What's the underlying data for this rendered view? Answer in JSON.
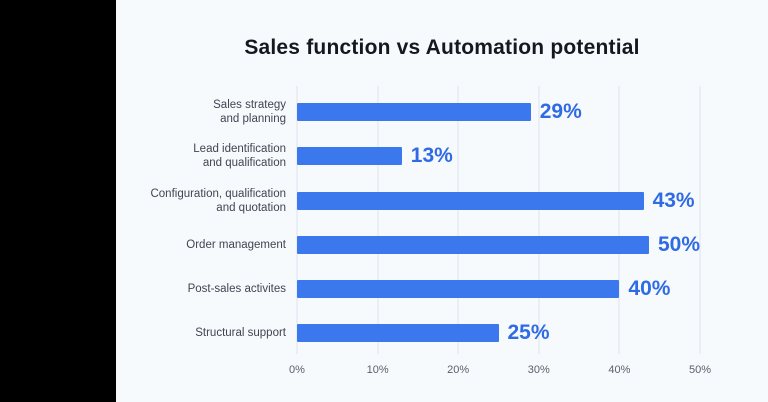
{
  "chart": {
    "title": "Sales function vs Automation potential"
  },
  "chart_data": {
    "type": "bar",
    "orientation": "horizontal",
    "title": "Sales function vs Automation potential",
    "categories": [
      "Sales strategy\nand planning",
      "Lead identification\nand qualification",
      "Configuration, qualification\nand quotation",
      "Order management",
      "Post-sales activites",
      "Structural support"
    ],
    "values": [
      29,
      13,
      43,
      50,
      40,
      25
    ],
    "value_labels": [
      "29%",
      "13%",
      "43%",
      "50%",
      "40%",
      "25%"
    ],
    "xlabel": "",
    "ylabel": "",
    "x_ticks": [
      "0%",
      "10%",
      "20%",
      "30%",
      "40%",
      "50%"
    ],
    "xlim": [
      0,
      50
    ],
    "grid": "vertical-only",
    "legend": "none"
  },
  "colors": {
    "bar": "#3b78ed",
    "value_label": "#2e6be4",
    "category_label": "#3f4552",
    "tick_label": "#5a5f6a",
    "title": "#14181f",
    "panel_background": "#f7fafd",
    "gridline": "#e9eef7",
    "letterbox": "#000000"
  }
}
